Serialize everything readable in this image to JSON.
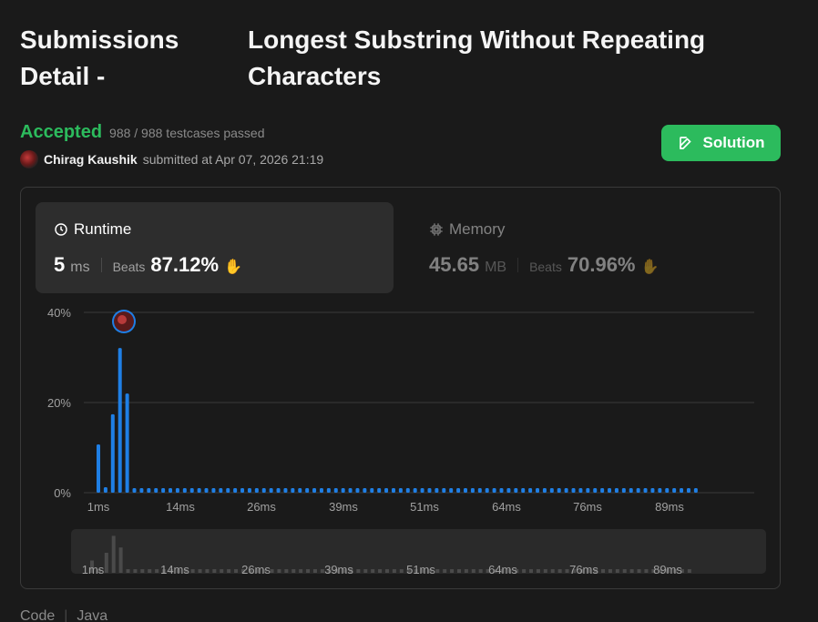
{
  "header": {
    "title_left": "Submissions Detail -",
    "title_right": "Longest Substring Without Repeating Characters"
  },
  "status": {
    "label": "Accepted",
    "testcases": "988 / 988 testcases passed",
    "user": "Chirag Kaushik",
    "submitted": "submitted at Apr 07, 2026 21:19"
  },
  "solution_button": "Solution",
  "runtime": {
    "title": "Runtime",
    "value": "5",
    "unit": "ms",
    "beats_label": "Beats",
    "beats": "87.12%"
  },
  "memory": {
    "title": "Memory",
    "value": "45.65",
    "unit": "MB",
    "beats_label": "Beats",
    "beats": "70.96%"
  },
  "footer": {
    "code_label": "Code",
    "lang": "Java"
  },
  "colors": {
    "accent": "#2cbb5d",
    "bar": "#1f7fe5",
    "bar_mini": "#4a4a4a"
  },
  "chart_data": {
    "type": "bar",
    "ylabel": "",
    "yticks": [
      "0%",
      "20%",
      "40%"
    ],
    "ylim": [
      0,
      40
    ],
    "xtick_labels": [
      "1ms",
      "14ms",
      "26ms",
      "39ms",
      "51ms",
      "64ms",
      "76ms",
      "89ms"
    ],
    "highlight_index": 4,
    "values": [
      10.7,
      1.2,
      17.4,
      32.1,
      22.0,
      1,
      1,
      1,
      1,
      1,
      1,
      1,
      1,
      1,
      1,
      1,
      1,
      1,
      1,
      1,
      1,
      1,
      1,
      1,
      1,
      1,
      1,
      1,
      1,
      1,
      1,
      1,
      1,
      1,
      1,
      1,
      1,
      1,
      1,
      1,
      1,
      1,
      1,
      1,
      1,
      1,
      1,
      1,
      1,
      1,
      1,
      1,
      1,
      1,
      1,
      1,
      1,
      1,
      1,
      1,
      1,
      1,
      1,
      1,
      1,
      1,
      1,
      1,
      1,
      1,
      1,
      1,
      1,
      1,
      1,
      1,
      1,
      1,
      1,
      1,
      1,
      1,
      1,
      1
    ]
  }
}
